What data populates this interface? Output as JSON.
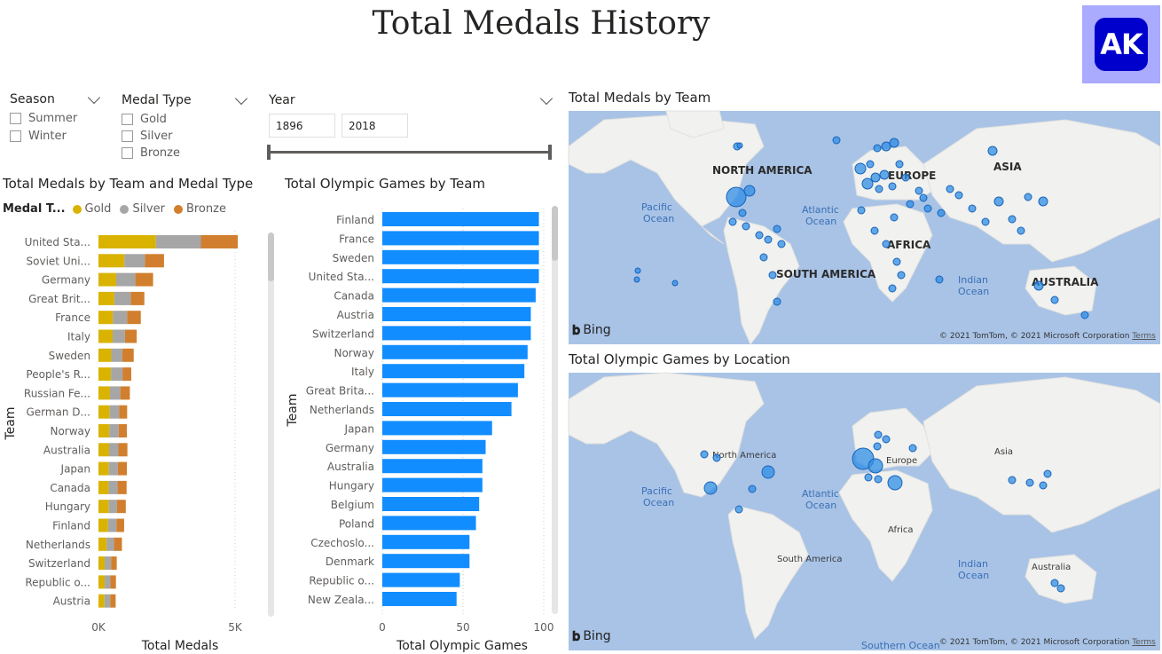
{
  "page_title": "Total Medals History",
  "logo_text": "AK",
  "slicers": {
    "season": {
      "label": "Season",
      "options": [
        "Summer",
        "Winter"
      ]
    },
    "medal_type": {
      "label": "Medal Type",
      "options": [
        "Gold",
        "Silver",
        "Bronze"
      ]
    },
    "year": {
      "label": "Year",
      "from": "1896",
      "to": "2018"
    }
  },
  "medals_chart": {
    "title": "Total Medals by Team and Medal Type",
    "legend_title": "Medal T...",
    "xlabel": "Total Medals",
    "ylabel": "Team",
    "ticks": [
      "0K",
      "5K"
    ]
  },
  "games_chart": {
    "title": "Total Olympic Games by Team",
    "xlabel": "Total Olympic Games",
    "ylabel": "Team",
    "ticks": [
      "0",
      "50",
      "100"
    ]
  },
  "map1": {
    "title": "Total Medals by Team",
    "labels": {
      "na": "NORTH AMERICA",
      "eu": "EUROPE",
      "asia": "ASIA",
      "af": "AFRICA",
      "sa": "SOUTH AMERICA",
      "au": "AUSTRALIA",
      "pac1": "Pacific",
      "pac2": "Ocean",
      "atl1": "Atlantic",
      "atl2": "Ocean",
      "ind1": "Indian",
      "ind2": "Ocean"
    }
  },
  "map2": {
    "title": "Total Olympic Games by Location",
    "labels": {
      "na": "North America",
      "eu": "Europe",
      "asia": "Asia",
      "af": "Africa",
      "sa": "South America",
      "au": "Australia",
      "pac1": "Pacific",
      "pac2": "Ocean",
      "atl1": "Atlantic",
      "atl2": "Ocean",
      "ind1": "Indian",
      "ind2": "Ocean",
      "south": "Southern Ocean"
    }
  },
  "map_brand": "Bing",
  "map_copyright": "© 2021 TomTom, © 2021 Microsoft Corporation",
  "map_terms": "Terms",
  "colors": {
    "gold": "#d9b300",
    "silver": "#a6a6a6",
    "bronze": "#d17f2e",
    "bar": "#118dff",
    "map_water": "#a8c3e6"
  },
  "chart_data": [
    {
      "type": "bar",
      "orientation": "horizontal",
      "stacked": true,
      "title": "Total Medals by Team and Medal Type",
      "xlabel": "Total Medals",
      "ylabel": "Team",
      "xlim": [
        0,
        5000
      ],
      "categories": [
        "United Sta...",
        "Soviet Uni...",
        "Germany",
        "Great Brit...",
        "France",
        "Italy",
        "Sweden",
        "People's R...",
        "Russian Fe...",
        "German D...",
        "Norway",
        "Australia",
        "Japan",
        "Canada",
        "Hungary",
        "Finland",
        "Netherlands",
        "Switzerland",
        "Republic o...",
        "Austria"
      ],
      "series": [
        {
          "name": "Gold",
          "values": [
            2100,
            950,
            650,
            580,
            530,
            520,
            470,
            460,
            420,
            410,
            400,
            390,
            380,
            370,
            380,
            350,
            300,
            230,
            230,
            220
          ]
        },
        {
          "name": "Silver",
          "values": [
            1650,
            750,
            700,
            600,
            520,
            450,
            400,
            420,
            380,
            350,
            340,
            340,
            330,
            330,
            300,
            310,
            270,
            230,
            210,
            210
          ]
        },
        {
          "name": "Bronze",
          "values": [
            1350,
            700,
            650,
            500,
            500,
            430,
            420,
            320,
            350,
            290,
            300,
            330,
            330,
            330,
            320,
            280,
            290,
            210,
            200,
            200
          ]
        }
      ]
    },
    {
      "type": "bar",
      "orientation": "horizontal",
      "title": "Total Olympic Games by Team",
      "xlabel": "Total Olympic Games",
      "ylabel": "Team",
      "xlim": [
        0,
        100
      ],
      "categories": [
        "Finland",
        "France",
        "Sweden",
        "United Sta...",
        "Canada",
        "Austria",
        "Switzerland",
        "Norway",
        "Italy",
        "Great Brita...",
        "Netherlands",
        "Japan",
        "Germany",
        "Australia",
        "Hungary",
        "Belgium",
        "Poland",
        "Czechoslo...",
        "Denmark",
        "Republic o...",
        "New Zeala..."
      ],
      "values": [
        97,
        97,
        97,
        97,
        95,
        92,
        92,
        90,
        88,
        84,
        80,
        68,
        64,
        62,
        62,
        60,
        58,
        54,
        54,
        48,
        46
      ]
    }
  ]
}
